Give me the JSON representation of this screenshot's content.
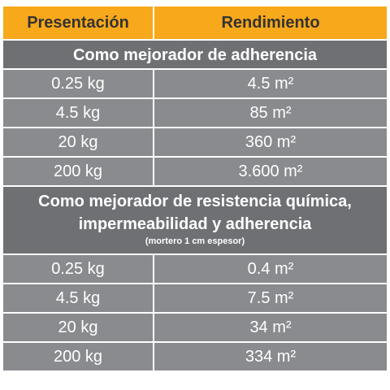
{
  "header": {
    "col1": "Presentación",
    "col2": "Rendimiento"
  },
  "section1": {
    "title": "Como mejorador de adherencia",
    "rows": [
      {
        "presentacion": "0.25 kg",
        "rendimiento": "4.5 m²"
      },
      {
        "presentacion": "4.5 kg",
        "rendimiento": "85 m²"
      },
      {
        "presentacion": "20 kg",
        "rendimiento": "360 m²"
      },
      {
        "presentacion": "200 kg",
        "rendimiento": "3.600 m²"
      }
    ]
  },
  "section2": {
    "title_line1": "Como mejorador de resistencia química,",
    "title_line2": "impermeabilidad y adherencia",
    "note": "(mortero 1 cm espesor)",
    "rows": [
      {
        "presentacion": "0.25 kg",
        "rendimiento": "0.4 m²"
      },
      {
        "presentacion": "4.5 kg",
        "rendimiento": "7.5 m²"
      },
      {
        "presentacion": "20 kg",
        "rendimiento": "34 m²"
      },
      {
        "presentacion": "200 kg",
        "rendimiento": "334 m²"
      }
    ]
  },
  "colors": {
    "header_bg": "#f8a81b",
    "header_text": "#333333",
    "cell_bg": "#8a8b8e",
    "section_bg": "#6f7074",
    "text": "#ffffff"
  }
}
